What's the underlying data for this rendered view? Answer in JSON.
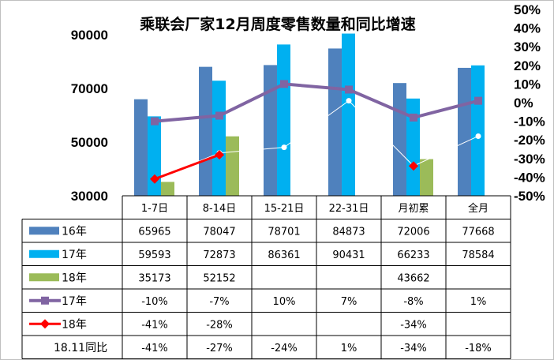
{
  "chart_data": {
    "type": "bar",
    "title": "乘联会厂家12月周度零售数量和同比增速",
    "categories": [
      "1-7日",
      "8-14日",
      "15-21日",
      "22-31日",
      "月初累",
      "全月"
    ],
    "y_left": {
      "ylim": [
        30000,
        90000
      ],
      "ticks": [
        "30000",
        "50000",
        "70000",
        "90000"
      ]
    },
    "y_right": {
      "ylim": [
        -50,
        50
      ],
      "ticks": [
        "50%",
        "40%",
        "30%",
        "20%",
        "10%",
        "0%",
        "-10%",
        "-20%",
        "-30%",
        "-40%",
        "-50%"
      ]
    },
    "bar_series": [
      {
        "name": "16年",
        "color": "#4f81bd",
        "values": [
          65965,
          78047,
          78701,
          84873,
          72006,
          77668
        ],
        "labels": [
          "65965",
          "78047",
          "78701",
          "84873",
          "72006",
          "77668"
        ]
      },
      {
        "name": "17年",
        "color": "#00b0f0",
        "values": [
          59593,
          72873,
          86361,
          90431,
          66233,
          78584
        ],
        "labels": [
          "59593",
          "72873",
          "86361",
          "90431",
          "66233",
          "78584"
        ]
      },
      {
        "name": "18年",
        "color": "#9bbb59",
        "values": [
          35173,
          52152,
          null,
          null,
          43662,
          null
        ],
        "labels": [
          "35173",
          "52152",
          "",
          "",
          "43662",
          ""
        ]
      }
    ],
    "line_series": [
      {
        "name": "17年",
        "color": "#8064a2",
        "marker": "square",
        "values": [
          -10,
          -7,
          10,
          7,
          -8,
          1
        ],
        "labels": [
          "-10%",
          "-7%",
          "10%",
          "7%",
          "-8%",
          "1%"
        ]
      },
      {
        "name": "18年",
        "color": "#ff0000",
        "marker": "diamond",
        "values": [
          -41,
          -28,
          null,
          null,
          -34,
          null
        ],
        "labels": [
          "-41%",
          "-28%",
          "",
          "",
          "-34%",
          ""
        ]
      },
      {
        "name": "18.11同比",
        "color": "#ffffff",
        "marker": "circle",
        "values": [
          -41,
          -27,
          -24,
          1,
          -34,
          -18
        ],
        "labels": [
          "-41%",
          "-27%",
          "-24%",
          "1%",
          "-34%",
          "-18%"
        ]
      }
    ]
  }
}
